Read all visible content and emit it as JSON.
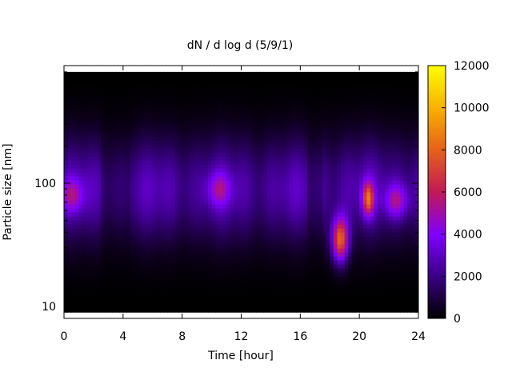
{
  "chart_data": {
    "type": "heatmap",
    "title": "dN / d log d (5/9/1)",
    "xlabel": "Time [hour]",
    "ylabel": "Particle size [nm]",
    "xlim": [
      0,
      24
    ],
    "xticks": [
      0,
      4,
      8,
      12,
      16,
      20,
      24
    ],
    "y_scale": "log",
    "ylim": [
      8,
      900
    ],
    "yticks": [
      10,
      100
    ],
    "colorbar": {
      "range": [
        0,
        12000
      ],
      "ticks": [
        0,
        2000,
        4000,
        6000,
        8000,
        10000,
        12000
      ],
      "palette": [
        "#000000",
        "#3b0087",
        "#7f00ff",
        "#c11a55",
        "#e6631a",
        "#f7b000",
        "#ffff00"
      ]
    },
    "features": [
      {
        "x": 0.5,
        "y": 80,
        "value": 5200
      },
      {
        "x": 10.5,
        "y": 90,
        "value": 5000
      },
      {
        "x": 18.7,
        "y": 35,
        "value": 9800
      },
      {
        "x": 20.6,
        "y": 75,
        "value": 8200
      },
      {
        "x": 22.5,
        "y": 72,
        "value": 5800
      }
    ],
    "background_profile": "broad purple band 20-400 nm, strongest 40-200 nm, dark below 15 nm and above 500 nm",
    "grid": false,
    "legend": "colorbar-right"
  }
}
